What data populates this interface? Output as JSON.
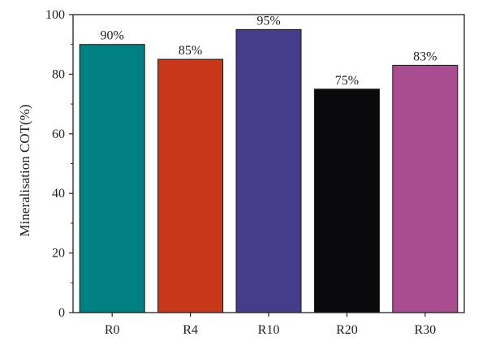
{
  "chart_data": {
    "type": "bar",
    "categories": [
      "R0",
      "R4",
      "R10",
      "R20",
      "R30"
    ],
    "values": [
      90,
      85,
      95,
      75,
      83
    ],
    "data_labels": [
      "90%",
      "85%",
      "95%",
      "75%",
      "83%"
    ],
    "bar_colors": [
      "#008080",
      "#c8371a",
      "#463c8c",
      "#0a0a0c",
      "#aa4c90"
    ],
    "title": "",
    "xlabel": "",
    "ylabel": "Mineralisation COT(%)",
    "ylim": [
      0,
      100
    ],
    "yticks": [
      0,
      20,
      40,
      60,
      80,
      100
    ],
    "grid": false,
    "legend": "none"
  }
}
